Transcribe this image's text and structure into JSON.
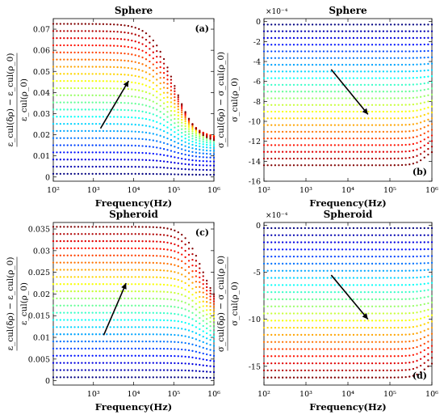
{
  "chart_data": [
    {
      "type": "scatter",
      "panel_label": "(a)",
      "title": "Sphere",
      "xlabel": "Frequency(Hz)",
      "ylabel": "ε_cul(δρ) − ε_cul(ρ_0) / ε_cul(ρ_0)",
      "ylabel_lines": [
        "ε_cul(δρ) − ε_cul(ρ_0)",
        "ε_cul(ρ_0)"
      ],
      "x_scale": "log",
      "xlim": [
        100,
        1000000
      ],
      "x_ticks": [
        100,
        1000,
        10000,
        100000,
        1000000
      ],
      "x_tick_labels": [
        "10²",
        "10³",
        "10⁴",
        "10⁵",
        "10⁶"
      ],
      "ylim": [
        -0.002,
        0.075
      ],
      "y_ticks": [
        0,
        0.01,
        0.02,
        0.03,
        0.04,
        0.05,
        0.06,
        0.07
      ],
      "y_tick_labels": [
        "0",
        "0.01",
        "0.02",
        "0.03",
        "0.04",
        "0.05",
        "0.06",
        "0.07"
      ],
      "y_exponent": "",
      "series_count": 22,
      "low_freq_min": 0.0015,
      "low_freq_max": 0.0725,
      "curve_shape": "decreasing above 10^4.4 Hz",
      "colormap": "jet",
      "arrow": {
        "from": [
          1500,
          0.023
        ],
        "to": [
          7500,
          0.0455
        ]
      }
    },
    {
      "type": "scatter",
      "panel_label": "(b)",
      "title": "Sphere",
      "xlabel": "Frequency(Hz)",
      "ylabel": "σ_cul(δρ) − σ_cul(ρ_0) / σ_cul(ρ_0)",
      "ylabel_lines": [
        "σ_cul(δρ) − σ_cul(ρ_0)",
        "σ_cul(ρ_0)"
      ],
      "x_scale": "log",
      "xlim": [
        100,
        1000000
      ],
      "x_ticks": [
        100,
        1000,
        10000,
        100000,
        1000000
      ],
      "x_tick_labels": [
        "10²",
        "10³",
        "10⁴",
        "10⁵",
        "10⁶"
      ],
      "ylim": [
        -16,
        0.3
      ],
      "y_ticks": [
        0,
        -2,
        -4,
        -6,
        -8,
        -10,
        -12,
        -14,
        -16
      ],
      "y_tick_labels": [
        "0",
        "-2",
        "-4",
        "-6",
        "-8",
        "-10",
        "-12",
        "-14",
        "-16"
      ],
      "y_exponent": "×10⁻⁴",
      "series_count": 22,
      "low_freq_min": -14.4,
      "low_freq_max": -0.3,
      "curve_shape": "curving upward near 10^6 Hz",
      "colormap": "jet",
      "arrow": {
        "from": [
          4000,
          -4.8
        ],
        "to": [
          30000,
          -9.3
        ]
      }
    },
    {
      "type": "scatter",
      "panel_label": "(c)",
      "title": "Spheroid",
      "xlabel": "Frequency(Hz)",
      "ylabel": "ε_cul(δρ) − ε_cul(ρ_0) / ε_cul(ρ_0)",
      "ylabel_lines": [
        "ε_cul(δρ) − ε_cul(ρ_0)",
        "ε_cul(ρ_0)"
      ],
      "x_scale": "log",
      "xlim": [
        100,
        1000000
      ],
      "x_ticks": [
        1000,
        10000,
        100000,
        1000000
      ],
      "x_tick_labels": [
        "10³",
        "10⁴",
        "10⁵",
        "10⁶"
      ],
      "ylim": [
        -0.001,
        0.0365
      ],
      "y_ticks": [
        0,
        0.005,
        0.01,
        0.015,
        0.02,
        0.025,
        0.03,
        0.035
      ],
      "y_tick_labels": [
        "0",
        "0.005",
        "0.01",
        "0.015",
        "0.02",
        "0.025",
        "0.03",
        "0.035"
      ],
      "y_exponent": "",
      "series_count": 22,
      "low_freq_min": 0.0008,
      "low_freq_max": 0.0355,
      "curve_shape": "decreasing above 10^5 Hz",
      "colormap": "jet",
      "arrow": {
        "from": [
          1800,
          0.0105
        ],
        "to": [
          6500,
          0.0225
        ]
      }
    },
    {
      "type": "scatter",
      "panel_label": "(d)",
      "title": "Spheroid",
      "xlabel": "Frequency(Hz)",
      "ylabel": "σ_cul(δρ) − σ_cul(ρ_0) / σ_cul(ρ_0)",
      "ylabel_lines": [
        "σ_cul(δρ) − σ_cul(ρ_0)",
        "σ_cul(ρ_0)"
      ],
      "x_scale": "log",
      "xlim": [
        100,
        1000000
      ],
      "x_ticks": [
        100,
        1000,
        10000,
        100000,
        1000000
      ],
      "x_tick_labels": [
        "10²",
        "10³",
        "10⁴",
        "10⁵",
        "10⁶"
      ],
      "ylim": [
        -17,
        0.3
      ],
      "y_ticks": [
        0,
        -5,
        -10,
        -15
      ],
      "y_tick_labels": [
        "0",
        "-5",
        "-10",
        "-15"
      ],
      "y_exponent": "×10⁻⁴",
      "series_count": 22,
      "low_freq_min": -16.2,
      "low_freq_max": -0.3,
      "curve_shape": "curving upward near 10^6 Hz",
      "colormap": "jet",
      "arrow": {
        "from": [
          4000,
          -5.3
        ],
        "to": [
          30000,
          -10.0
        ]
      }
    }
  ]
}
